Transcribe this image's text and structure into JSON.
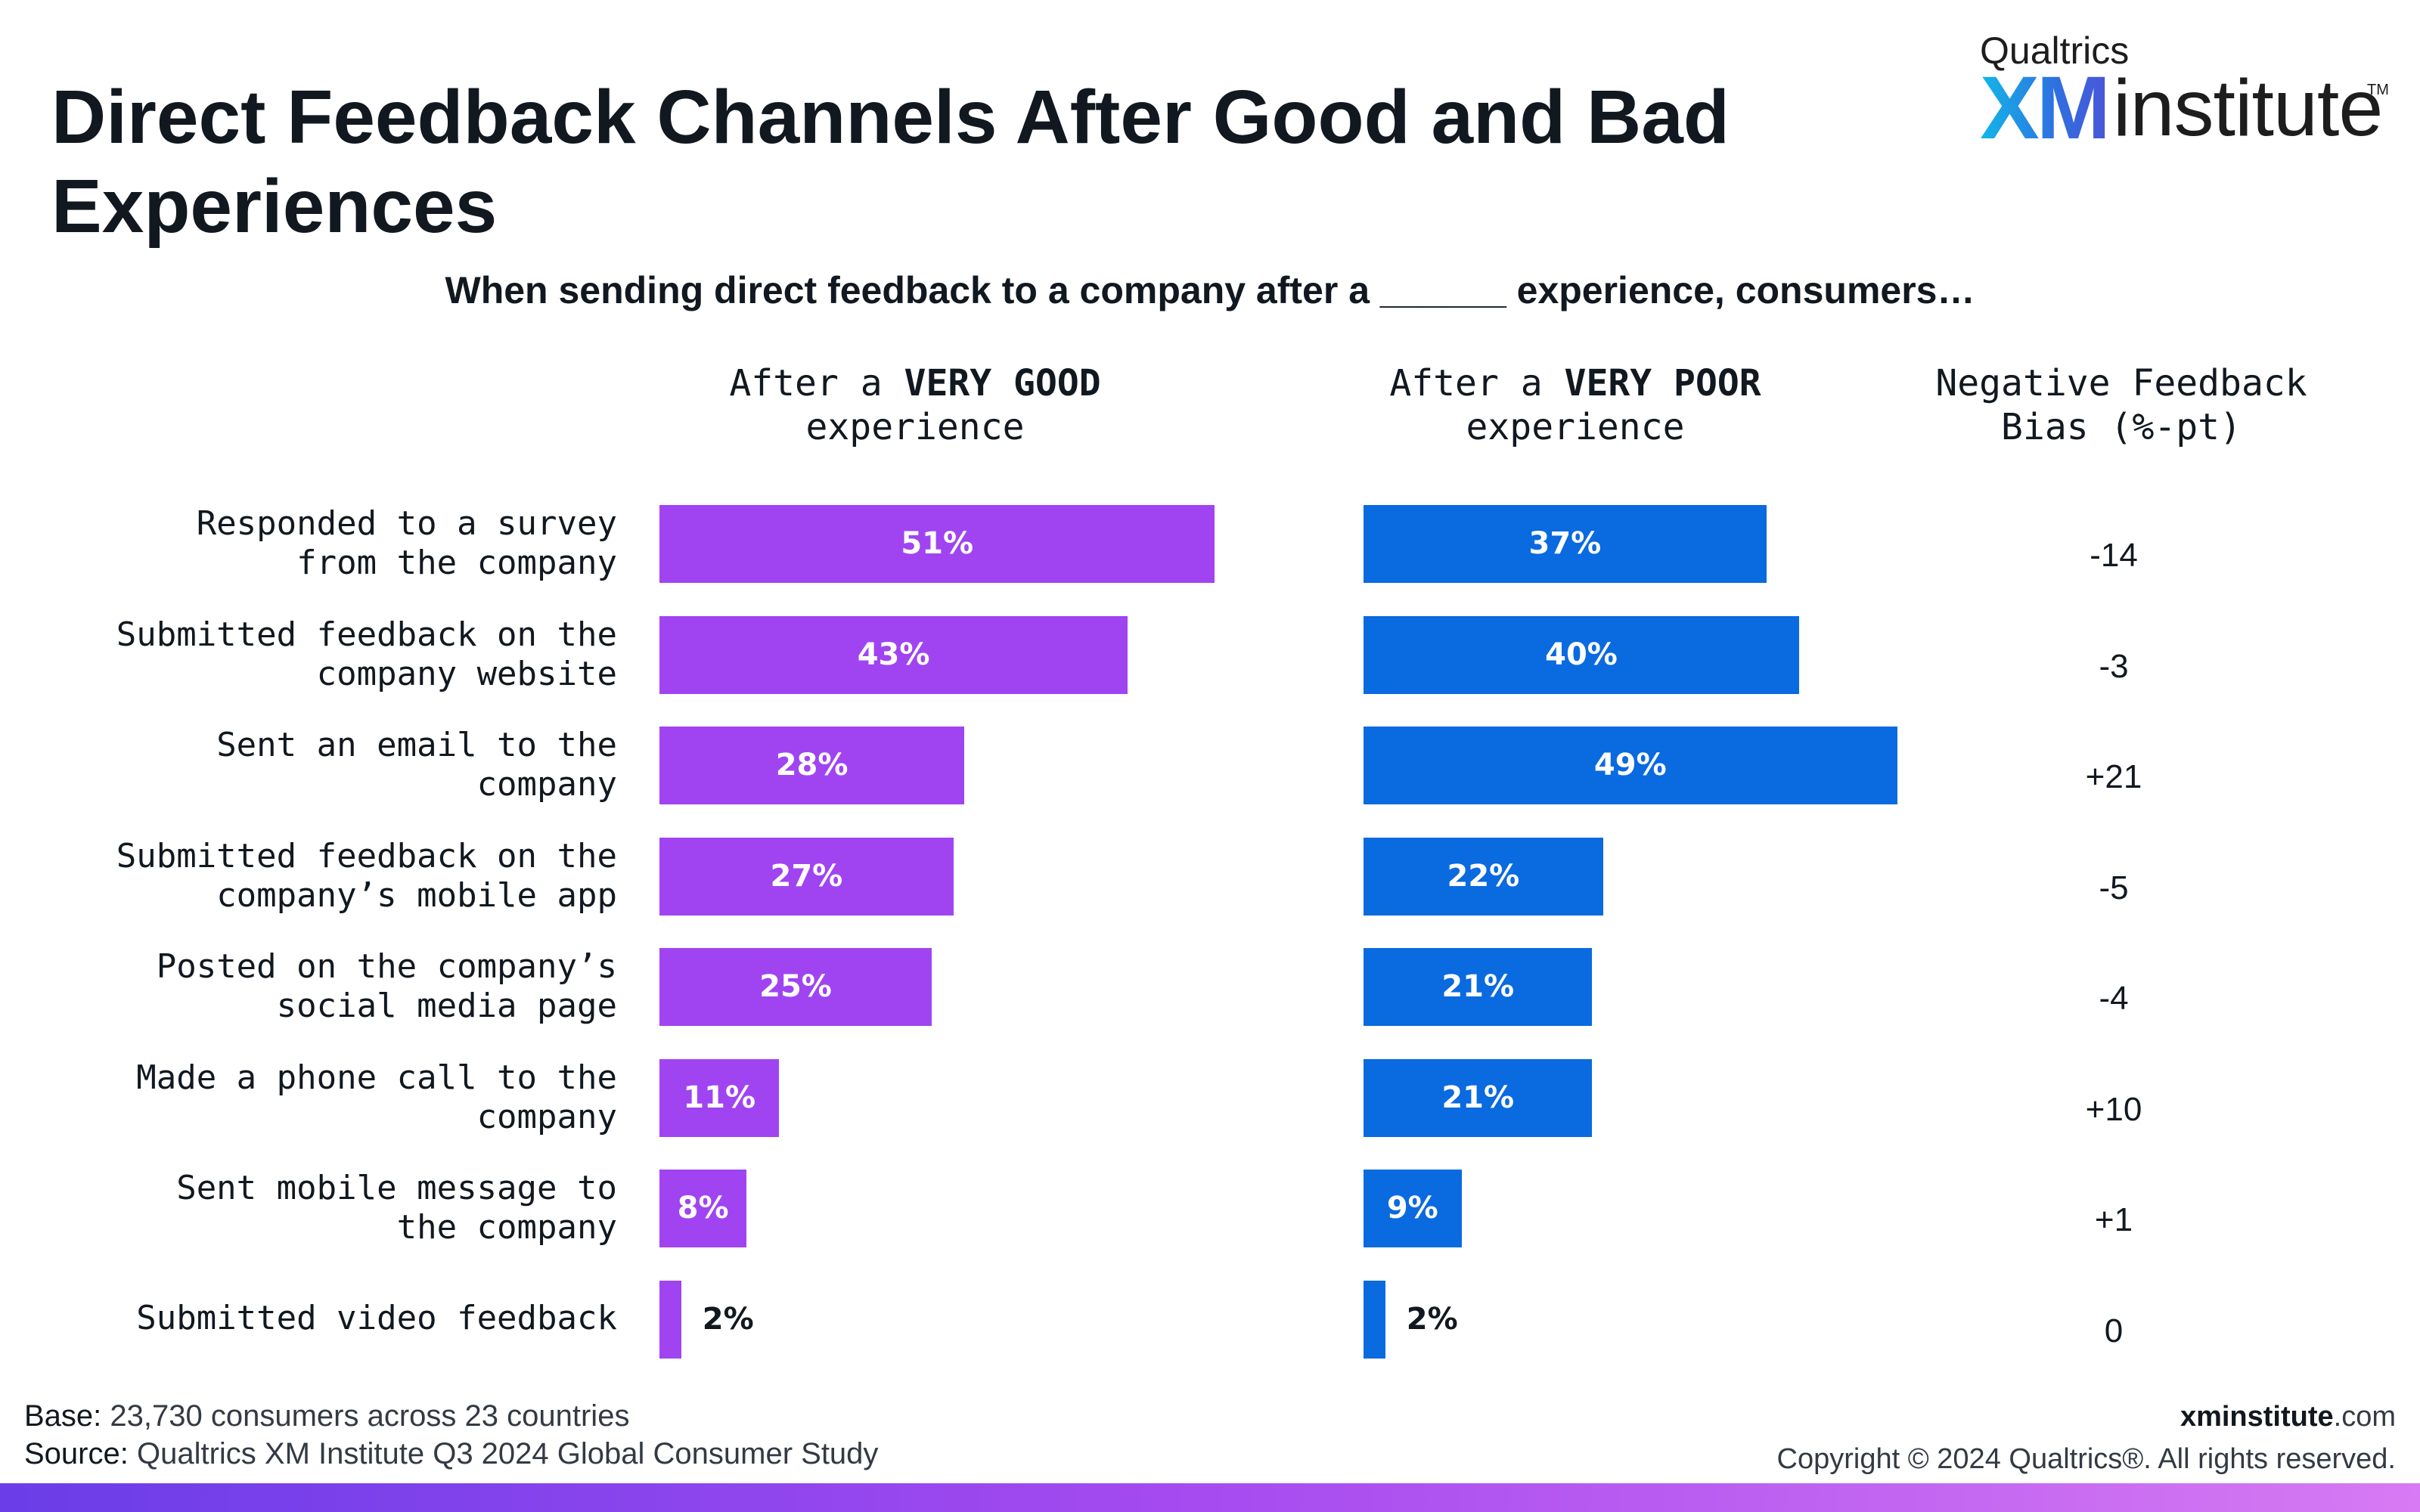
{
  "title": "Direct Feedback Channels After Good and Bad\nExperiences",
  "logo": {
    "top": "Qualtrics",
    "xm": "XM",
    "institute": "institute",
    "tm": "TM"
  },
  "subtitle": "When sending direct feedback to a company after a ______ experience, consumers…",
  "columns": {
    "good": {
      "pre": "After a ",
      "bold": "VERY GOOD",
      "post": "experience"
    },
    "poor": {
      "pre": "After a ",
      "bold": "VERY POOR",
      "post": "experience"
    },
    "bias": {
      "line1": "Negative Feedback",
      "line2": "Bias (%-pt)"
    }
  },
  "colors": {
    "good": "#a044f2",
    "poor": "#0a6ae0"
  },
  "chart_data": {
    "type": "bar",
    "orientation": "horizontal",
    "categories": [
      "Responded to a survey\nfrom the company",
      "Submitted feedback on the\ncompany website",
      "Sent an email to the\ncompany",
      "Submitted feedback on the\ncompany’s mobile app",
      "Posted on the company’s\nsocial media page",
      "Made a phone call to the\ncompany",
      "Sent mobile message to\nthe company",
      "Submitted video feedback"
    ],
    "series": [
      {
        "name": "After a VERY GOOD experience",
        "values": [
          51,
          43,
          28,
          27,
          25,
          11,
          8,
          2
        ],
        "labels": [
          "51%",
          "43%",
          "28%",
          "27%",
          "25%",
          "11%",
          "8%",
          "2%"
        ]
      },
      {
        "name": "After a VERY POOR experience",
        "values": [
          37,
          40,
          49,
          22,
          21,
          21,
          9,
          2
        ],
        "labels": [
          "37%",
          "40%",
          "49%",
          "22%",
          "21%",
          "21%",
          "9%",
          "2%"
        ]
      }
    ],
    "bias": [
      "-14",
      "-3",
      "+21",
      "-5",
      "-4",
      "+10",
      "+1",
      "0"
    ],
    "xlim": [
      0,
      100
    ],
    "grid": false,
    "legend": "none"
  },
  "footer": {
    "base_key": "Base:",
    "base_val": " 23,730 consumers across 23 countries",
    "source_key": "Source:",
    "source_val": " Qualtrics XM Institute Q3 2024 Global Consumer Study",
    "site_bold": "xminstitute",
    "site_rest": ".com",
    "copyright": "Copyright © 2024 Qualtrics®. All rights reserved."
  }
}
